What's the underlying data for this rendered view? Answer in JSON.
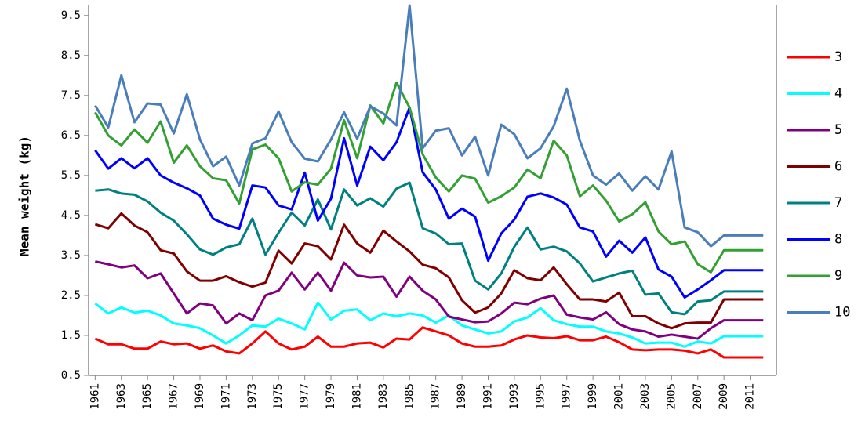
{
  "chart_data": {
    "type": "line",
    "y_label": "Mean weight (kg)",
    "x": [
      1961,
      1962,
      1963,
      1964,
      1965,
      1966,
      1967,
      1968,
      1969,
      1970,
      1971,
      1972,
      1973,
      1974,
      1975,
      1976,
      1977,
      1978,
      1979,
      1980,
      1981,
      1982,
      1983,
      1984,
      1985,
      1986,
      1987,
      1988,
      1989,
      1990,
      1991,
      1992,
      1993,
      1994,
      1995,
      1996,
      1997,
      1998,
      1999,
      2000,
      2001,
      2002,
      2003,
      2004,
      2005,
      2006,
      2007,
      2008,
      2009,
      2010,
      2011,
      2012
    ],
    "xlim": [
      1960.5,
      2013
    ],
    "xticks": [
      1961,
      1963,
      1965,
      1967,
      1969,
      1971,
      1973,
      1975,
      1977,
      1979,
      1981,
      1983,
      1985,
      1987,
      1989,
      1991,
      1993,
      1995,
      1997,
      1999,
      2001,
      2003,
      2005,
      2007,
      2009,
      2011
    ],
    "ylim": [
      0.5,
      9.75
    ],
    "yticks": [
      0.5,
      1.5,
      2.5,
      3.5,
      4.5,
      5.5,
      6.5,
      7.5,
      8.5,
      9.5
    ],
    "legend": "right",
    "series": [
      {
        "name": "3",
        "color": "#ff0000",
        "values": [
          1.42,
          1.28,
          1.28,
          1.17,
          1.17,
          1.35,
          1.28,
          1.3,
          1.17,
          1.25,
          1.1,
          1.05,
          1.3,
          1.6,
          1.3,
          1.15,
          1.22,
          1.47,
          1.22,
          1.22,
          1.3,
          1.32,
          1.2,
          1.42,
          1.4,
          1.7,
          1.6,
          1.5,
          1.3,
          1.22,
          1.22,
          1.25,
          1.4,
          1.5,
          1.45,
          1.43,
          1.48,
          1.38,
          1.38,
          1.47,
          1.33,
          1.15,
          1.13,
          1.15,
          1.15,
          1.12,
          1.05,
          1.15,
          0.95,
          0.95,
          0.95,
          0.95
        ]
      },
      {
        "name": "4",
        "color": "#00ffff",
        "values": [
          2.3,
          2.05,
          2.2,
          2.07,
          2.12,
          2.0,
          1.8,
          1.75,
          1.68,
          1.5,
          1.3,
          1.5,
          1.75,
          1.72,
          1.92,
          1.8,
          1.65,
          2.32,
          1.9,
          2.12,
          2.15,
          1.88,
          2.05,
          1.98,
          2.05,
          2.0,
          1.82,
          2.0,
          1.75,
          1.65,
          1.55,
          1.6,
          1.85,
          1.95,
          2.18,
          1.88,
          1.78,
          1.72,
          1.72,
          1.6,
          1.55,
          1.45,
          1.3,
          1.32,
          1.32,
          1.22,
          1.35,
          1.3,
          1.48,
          1.48,
          1.48,
          1.48
        ]
      },
      {
        "name": "5",
        "color": "#800080",
        "values": [
          3.35,
          3.28,
          3.2,
          3.25,
          2.93,
          3.05,
          2.55,
          2.05,
          2.3,
          2.25,
          1.8,
          2.05,
          1.88,
          2.5,
          2.62,
          3.07,
          2.65,
          3.07,
          2.62,
          3.32,
          3.0,
          2.95,
          2.97,
          2.47,
          2.97,
          2.62,
          2.4,
          1.97,
          1.9,
          1.83,
          1.85,
          2.05,
          2.32,
          2.28,
          2.42,
          2.5,
          2.02,
          1.95,
          1.9,
          2.08,
          1.78,
          1.65,
          1.6,
          1.47,
          1.52,
          1.47,
          1.42,
          1.68,
          1.88,
          1.88,
          1.88,
          1.88
        ]
      },
      {
        "name": "6",
        "color": "#800000",
        "values": [
          4.28,
          4.18,
          4.55,
          4.25,
          4.08,
          3.63,
          3.55,
          3.1,
          2.87,
          2.87,
          2.98,
          2.83,
          2.72,
          2.82,
          3.62,
          3.3,
          3.8,
          3.73,
          3.4,
          4.27,
          3.8,
          3.57,
          4.12,
          3.85,
          3.6,
          3.27,
          3.18,
          2.95,
          2.38,
          2.07,
          2.2,
          2.55,
          3.13,
          2.93,
          2.88,
          3.2,
          2.78,
          2.4,
          2.4,
          2.35,
          2.57,
          1.98,
          1.98,
          1.8,
          1.68,
          1.8,
          1.82,
          1.82,
          2.4,
          2.4,
          2.4,
          2.4
        ]
      },
      {
        "name": "7",
        "color": "#008080",
        "values": [
          5.12,
          5.15,
          5.05,
          5.02,
          4.85,
          4.57,
          4.37,
          4.03,
          3.65,
          3.52,
          3.7,
          3.78,
          4.42,
          3.52,
          4.07,
          4.57,
          4.25,
          4.9,
          4.15,
          5.15,
          4.75,
          4.93,
          4.72,
          5.17,
          5.32,
          4.18,
          4.05,
          3.78,
          3.8,
          2.87,
          2.65,
          3.05,
          3.72,
          4.2,
          3.65,
          3.72,
          3.6,
          3.3,
          2.85,
          2.95,
          3.05,
          3.12,
          2.52,
          2.55,
          2.08,
          2.03,
          2.35,
          2.38,
          2.6,
          2.6,
          2.6,
          2.6
        ]
      },
      {
        "name": "8",
        "color": "#0000ff",
        "values": [
          6.13,
          5.67,
          5.93,
          5.68,
          5.93,
          5.5,
          5.32,
          5.18,
          5.0,
          4.42,
          4.27,
          4.17,
          5.25,
          5.2,
          4.75,
          4.65,
          5.57,
          4.37,
          4.92,
          6.43,
          5.25,
          6.22,
          5.88,
          6.33,
          7.2,
          5.58,
          5.15,
          4.42,
          4.67,
          4.47,
          3.37,
          4.05,
          4.4,
          4.97,
          5.05,
          4.95,
          4.77,
          4.2,
          4.1,
          3.47,
          3.87,
          3.57,
          3.95,
          3.15,
          2.97,
          2.45,
          2.65,
          2.88,
          3.13,
          3.13,
          3.13,
          3.13
        ]
      },
      {
        "name": "9",
        "color": "#33a033",
        "values": [
          7.08,
          6.5,
          6.25,
          6.65,
          6.32,
          6.85,
          5.82,
          6.25,
          5.73,
          5.43,
          5.38,
          4.8,
          6.15,
          6.27,
          5.93,
          5.1,
          5.33,
          5.27,
          5.67,
          6.88,
          5.93,
          7.25,
          6.8,
          7.82,
          7.2,
          6.03,
          5.45,
          5.1,
          5.5,
          5.42,
          4.82,
          4.98,
          5.2,
          5.65,
          5.43,
          6.37,
          6.0,
          4.98,
          5.25,
          4.87,
          4.35,
          4.53,
          4.83,
          4.1,
          3.78,
          3.85,
          3.28,
          3.08,
          3.63,
          3.63,
          3.63,
          3.63
        ]
      },
      {
        "name": "10",
        "color": "#4a7ebb",
        "values": [
          7.25,
          6.7,
          8.0,
          6.83,
          7.3,
          7.27,
          6.55,
          7.53,
          6.4,
          5.73,
          5.97,
          5.25,
          6.3,
          6.43,
          7.1,
          6.33,
          5.92,
          5.85,
          6.4,
          7.08,
          6.42,
          7.23,
          7.05,
          6.75,
          9.75,
          6.18,
          6.62,
          6.68,
          6.0,
          6.47,
          5.5,
          6.77,
          6.53,
          5.93,
          6.18,
          6.73,
          7.67,
          6.37,
          5.5,
          5.27,
          5.55,
          5.12,
          5.48,
          5.15,
          6.1,
          4.2,
          4.08,
          3.73,
          4.0,
          4.0,
          4.0,
          4.0
        ]
      }
    ]
  }
}
